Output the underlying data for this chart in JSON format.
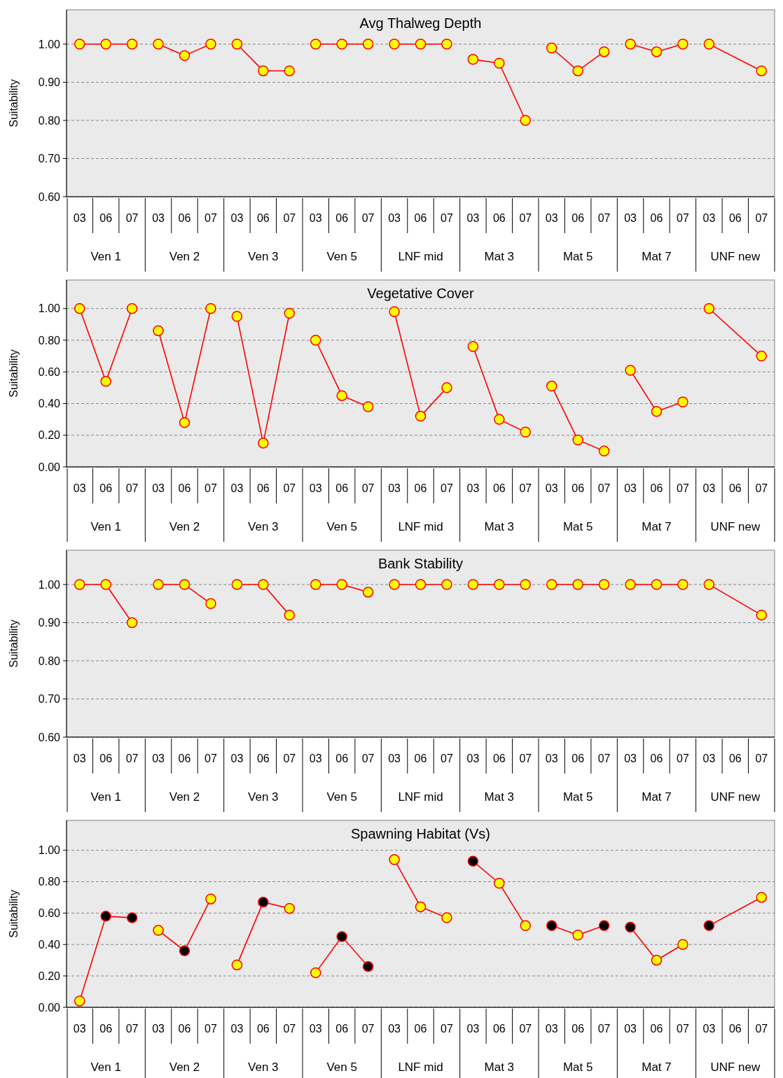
{
  "chart_data": [
    {
      "type": "line",
      "title": "Avg Thalweg  Depth",
      "ylabel": "Suitability",
      "categories": [
        "03",
        "06",
        "07",
        "03",
        "06",
        "07",
        "03",
        "06",
        "07",
        "03",
        "06",
        "07",
        "03",
        "06",
        "07",
        "03",
        "06",
        "07",
        "03",
        "06",
        "07",
        "03",
        "06",
        "07",
        "03",
        "06",
        "07"
      ],
      "annotations": [
        "Ven 1",
        "Ven 2",
        "Ven 3",
        "Ven 5",
        "LNF mid",
        "Mat 3",
        "Mat 5",
        "Mat 7",
        "UNF new"
      ],
      "ylim": [
        0.6,
        1.09
      ],
      "yticks": [
        {
          "value": 0.6,
          "label": "0.60"
        },
        {
          "value": 0.7,
          "label": "0.70"
        },
        {
          "value": 0.8,
          "label": "0.80"
        },
        {
          "value": 0.9,
          "label": "0.90"
        },
        {
          "value": 1,
          "label": "1.00"
        }
      ],
      "grid": "y",
      "marker": "circle",
      "line_style": "solid",
      "colors": [
        "#ffff00",
        "#ffff00",
        "#ffff00",
        "#ffff00",
        "#ffff00",
        "#ffff00",
        "#ffff00",
        "#ffff00",
        "#ffff00",
        "#ffff00",
        "#ffff00",
        "#ffff00",
        "#ffff00",
        "#ffff00",
        "#ffff00",
        "#ffff00",
        "#ffff00",
        "#ffff00",
        "#ffff00",
        "#ffff00",
        "#ffff00",
        "#ffff00",
        "#ffff00",
        "#ffff00",
        "#ffff00",
        null,
        "#ffff00"
      ],
      "series": [
        {
          "color": "#ff0000",
          "values": [
            1,
            1,
            1,
            null,
            null,
            null,
            null,
            null,
            null,
            null,
            null,
            null,
            null,
            null,
            null,
            null,
            null,
            null,
            null,
            null,
            null,
            null,
            null,
            null,
            null,
            null,
            null
          ]
        },
        {
          "color": "#ff0000",
          "values": [
            null,
            null,
            null,
            1,
            0.97,
            1,
            null,
            null,
            null,
            null,
            null,
            null,
            null,
            null,
            null,
            null,
            null,
            null,
            null,
            null,
            null,
            null,
            null,
            null,
            null,
            null,
            null
          ]
        },
        {
          "color": "#ff0000",
          "values": [
            null,
            null,
            null,
            null,
            null,
            null,
            1,
            0.93,
            0.93,
            null,
            null,
            null,
            null,
            null,
            null,
            null,
            null,
            null,
            null,
            null,
            null,
            null,
            null,
            null,
            null,
            null,
            null
          ]
        },
        {
          "color": "#ff0000",
          "values": [
            null,
            null,
            null,
            null,
            null,
            null,
            null,
            null,
            null,
            1,
            1,
            1,
            null,
            null,
            null,
            null,
            null,
            null,
            null,
            null,
            null,
            null,
            null,
            null,
            null,
            null,
            null
          ]
        },
        {
          "color": "#ff0000",
          "values": [
            null,
            null,
            null,
            null,
            null,
            null,
            null,
            null,
            null,
            null,
            null,
            null,
            1,
            1,
            1,
            null,
            null,
            null,
            null,
            null,
            null,
            null,
            null,
            null,
            null,
            null,
            null
          ]
        },
        {
          "color": "#ff0000",
          "values": [
            null,
            null,
            null,
            null,
            null,
            null,
            null,
            null,
            null,
            null,
            null,
            null,
            null,
            null,
            null,
            0.96,
            0.95,
            0.8,
            null,
            null,
            null,
            null,
            null,
            null,
            null,
            null,
            null
          ]
        },
        {
          "color": "#ff0000",
          "values": [
            null,
            null,
            null,
            null,
            null,
            null,
            null,
            null,
            null,
            null,
            null,
            null,
            null,
            null,
            null,
            null,
            null,
            null,
            0.99,
            0.93,
            0.98,
            null,
            null,
            null,
            null,
            null,
            null
          ]
        },
        {
          "color": "#ff0000",
          "values": [
            null,
            null,
            null,
            null,
            null,
            null,
            null,
            null,
            null,
            null,
            null,
            null,
            null,
            null,
            null,
            null,
            null,
            null,
            null,
            null,
            null,
            1,
            0.98,
            1,
            null,
            null,
            null
          ]
        },
        {
          "color": "#ff0000",
          "values": [
            null,
            null,
            null,
            null,
            null,
            null,
            null,
            null,
            null,
            null,
            null,
            null,
            null,
            null,
            null,
            null,
            null,
            null,
            null,
            null,
            null,
            null,
            null,
            null,
            1,
            null,
            0.93
          ]
        }
      ]
    },
    {
      "type": "line",
      "title": "Vegetative Cover",
      "ylabel": "Suitability",
      "categories": [
        "03",
        "06",
        "07",
        "03",
        "06",
        "07",
        "03",
        "06",
        "07",
        "03",
        "06",
        "07",
        "03",
        "06",
        "07",
        "03",
        "06",
        "07",
        "03",
        "06",
        "07",
        "03",
        "06",
        "07",
        "03",
        "06",
        "07"
      ],
      "annotations": [
        "Ven 1",
        "Ven 2",
        "Ven 3",
        "Ven 5",
        "LNF mid",
        "Mat 3",
        "Mat 5",
        "Mat 7",
        "UNF new"
      ],
      "ylim": [
        0,
        1.18
      ],
      "yticks": [
        {
          "value": 0,
          "label": "0.00"
        },
        {
          "value": 0.2,
          "label": "0.20"
        },
        {
          "value": 0.4,
          "label": "0.40"
        },
        {
          "value": 0.6,
          "label": "0.60"
        },
        {
          "value": 0.8,
          "label": "0.80"
        },
        {
          "value": 1,
          "label": "1.00"
        }
      ],
      "grid": "y",
      "marker": "circle",
      "line_style": "solid",
      "colors": [
        "#ffff00",
        "#ffff00",
        "#ffff00",
        "#ffff00",
        "#ffff00",
        "#ffff00",
        "#ffff00",
        "#ffff00",
        "#ffff00",
        "#ffff00",
        "#ffff00",
        "#ffff00",
        "#ffff00",
        "#ffff00",
        "#ffff00",
        "#ffff00",
        "#ffff00",
        "#ffff00",
        "#ffff00",
        "#ffff00",
        "#ffff00",
        "#ffff00",
        "#ffff00",
        "#ffff00",
        "#ffff00",
        null,
        "#ffff00"
      ],
      "series": [
        {
          "color": "#ff0000",
          "values": [
            1,
            0.54,
            1,
            null,
            null,
            null,
            null,
            null,
            null,
            null,
            null,
            null,
            null,
            null,
            null,
            null,
            null,
            null,
            null,
            null,
            null,
            null,
            null,
            null,
            null,
            null,
            null
          ]
        },
        {
          "color": "#ff0000",
          "values": [
            null,
            null,
            null,
            0.86,
            0.28,
            1,
            null,
            null,
            null,
            null,
            null,
            null,
            null,
            null,
            null,
            null,
            null,
            null,
            null,
            null,
            null,
            null,
            null,
            null,
            null,
            null,
            null
          ]
        },
        {
          "color": "#ff0000",
          "values": [
            null,
            null,
            null,
            null,
            null,
            null,
            0.95,
            0.15,
            0.97,
            null,
            null,
            null,
            null,
            null,
            null,
            null,
            null,
            null,
            null,
            null,
            null,
            null,
            null,
            null,
            null,
            null,
            null
          ]
        },
        {
          "color": "#ff0000",
          "values": [
            null,
            null,
            null,
            null,
            null,
            null,
            null,
            null,
            null,
            0.8,
            0.45,
            0.38,
            null,
            null,
            null,
            null,
            null,
            null,
            null,
            null,
            null,
            null,
            null,
            null,
            null,
            null,
            null
          ]
        },
        {
          "color": "#ff0000",
          "values": [
            null,
            null,
            null,
            null,
            null,
            null,
            null,
            null,
            null,
            null,
            null,
            null,
            0.98,
            0.32,
            0.5,
            null,
            null,
            null,
            null,
            null,
            null,
            null,
            null,
            null,
            null,
            null,
            null
          ]
        },
        {
          "color": "#ff0000",
          "values": [
            null,
            null,
            null,
            null,
            null,
            null,
            null,
            null,
            null,
            null,
            null,
            null,
            null,
            null,
            null,
            0.76,
            0.3,
            0.22,
            null,
            null,
            null,
            null,
            null,
            null,
            null,
            null,
            null
          ]
        },
        {
          "color": "#ff0000",
          "values": [
            null,
            null,
            null,
            null,
            null,
            null,
            null,
            null,
            null,
            null,
            null,
            null,
            null,
            null,
            null,
            null,
            null,
            null,
            0.51,
            0.17,
            0.1,
            null,
            null,
            null,
            null,
            null,
            null
          ]
        },
        {
          "color": "#ff0000",
          "values": [
            null,
            null,
            null,
            null,
            null,
            null,
            null,
            null,
            null,
            null,
            null,
            null,
            null,
            null,
            null,
            null,
            null,
            null,
            null,
            null,
            null,
            0.61,
            0.35,
            0.41,
            null,
            null,
            null
          ]
        },
        {
          "color": "#ff0000",
          "values": [
            null,
            null,
            null,
            null,
            null,
            null,
            null,
            null,
            null,
            null,
            null,
            null,
            null,
            null,
            null,
            null,
            null,
            null,
            null,
            null,
            null,
            null,
            null,
            null,
            1,
            null,
            0.7
          ]
        }
      ]
    },
    {
      "type": "line",
      "title": "Bank Stability",
      "ylabel": "Suitability",
      "categories": [
        "03",
        "06",
        "07",
        "03",
        "06",
        "07",
        "03",
        "06",
        "07",
        "03",
        "06",
        "07",
        "03",
        "06",
        "07",
        "03",
        "06",
        "07",
        "03",
        "06",
        "07",
        "03",
        "06",
        "07",
        "03",
        "06",
        "07"
      ],
      "annotations": [
        "Ven 1",
        "Ven 2",
        "Ven 3",
        "Ven 5",
        "LNF mid",
        "Mat 3",
        "Mat 5",
        "Mat 7",
        "UNF new"
      ],
      "ylim": [
        0.6,
        1.09
      ],
      "yticks": [
        {
          "value": 0.6,
          "label": "0.60"
        },
        {
          "value": 0.7,
          "label": "0.70"
        },
        {
          "value": 0.8,
          "label": "0.80"
        },
        {
          "value": 0.9,
          "label": "0.90"
        },
        {
          "value": 1,
          "label": "1.00"
        }
      ],
      "grid": "y",
      "marker": "circle",
      "line_style": "solid",
      "colors": [
        "#ffff00",
        "#ffff00",
        "#ffff00",
        "#ffff00",
        "#ffff00",
        "#ffff00",
        "#ffff00",
        "#ffff00",
        "#ffff00",
        "#ffff00",
        "#ffff00",
        "#ffff00",
        "#ffff00",
        "#ffff00",
        "#ffff00",
        "#ffff00",
        "#ffff00",
        "#ffff00",
        "#ffff00",
        "#ffff00",
        "#ffff00",
        "#ffff00",
        "#ffff00",
        "#ffff00",
        "#ffff00",
        null,
        "#ffff00"
      ],
      "series": [
        {
          "color": "#ff0000",
          "values": [
            1,
            1,
            0.9,
            null,
            null,
            null,
            null,
            null,
            null,
            null,
            null,
            null,
            null,
            null,
            null,
            null,
            null,
            null,
            null,
            null,
            null,
            null,
            null,
            null,
            null,
            null,
            null
          ]
        },
        {
          "color": "#ff0000",
          "values": [
            null,
            null,
            null,
            1,
            1,
            0.95,
            null,
            null,
            null,
            null,
            null,
            null,
            null,
            null,
            null,
            null,
            null,
            null,
            null,
            null,
            null,
            null,
            null,
            null,
            null,
            null,
            null
          ]
        },
        {
          "color": "#ff0000",
          "values": [
            null,
            null,
            null,
            null,
            null,
            null,
            1,
            1,
            0.92,
            null,
            null,
            null,
            null,
            null,
            null,
            null,
            null,
            null,
            null,
            null,
            null,
            null,
            null,
            null,
            null,
            null,
            null
          ]
        },
        {
          "color": "#ff0000",
          "values": [
            null,
            null,
            null,
            null,
            null,
            null,
            null,
            null,
            null,
            1,
            1,
            0.98,
            null,
            null,
            null,
            null,
            null,
            null,
            null,
            null,
            null,
            null,
            null,
            null,
            null,
            null,
            null
          ]
        },
        {
          "color": "#ff0000",
          "values": [
            null,
            null,
            null,
            null,
            null,
            null,
            null,
            null,
            null,
            null,
            null,
            null,
            1,
            1,
            1,
            null,
            null,
            null,
            null,
            null,
            null,
            null,
            null,
            null,
            null,
            null,
            null
          ]
        },
        {
          "color": "#ff0000",
          "values": [
            null,
            null,
            null,
            null,
            null,
            null,
            null,
            null,
            null,
            null,
            null,
            null,
            null,
            null,
            null,
            1,
            1,
            1,
            null,
            null,
            null,
            null,
            null,
            null,
            null,
            null,
            null
          ]
        },
        {
          "color": "#ff0000",
          "values": [
            null,
            null,
            null,
            null,
            null,
            null,
            null,
            null,
            null,
            null,
            null,
            null,
            null,
            null,
            null,
            null,
            null,
            null,
            1,
            1,
            1,
            null,
            null,
            null,
            null,
            null,
            null
          ]
        },
        {
          "color": "#ff0000",
          "values": [
            null,
            null,
            null,
            null,
            null,
            null,
            null,
            null,
            null,
            null,
            null,
            null,
            null,
            null,
            null,
            null,
            null,
            null,
            null,
            null,
            null,
            1,
            1,
            1,
            null,
            null,
            null
          ]
        },
        {
          "color": "#ff0000",
          "values": [
            null,
            null,
            null,
            null,
            null,
            null,
            null,
            null,
            null,
            null,
            null,
            null,
            null,
            null,
            null,
            null,
            null,
            null,
            null,
            null,
            null,
            null,
            null,
            null,
            1,
            null,
            0.92
          ]
        }
      ]
    },
    {
      "type": "line",
      "title": "Spawning Habitat (Vs)",
      "ylabel": "Suitability",
      "categories": [
        "03",
        "06",
        "07",
        "03",
        "06",
        "07",
        "03",
        "06",
        "07",
        "03",
        "06",
        "07",
        "03",
        "06",
        "07",
        "03",
        "06",
        "07",
        "03",
        "06",
        "07",
        "03",
        "06",
        "07",
        "03",
        "06",
        "07"
      ],
      "annotations": [
        "Ven 1",
        "Ven 2",
        "Ven 3",
        "Ven 5",
        "LNF mid",
        "Mat 3",
        "Mat 5",
        "Mat 7",
        "UNF new"
      ],
      "ylim": [
        0,
        1.19
      ],
      "yticks": [
        {
          "value": 0,
          "label": "0.00"
        },
        {
          "value": 0.2,
          "label": "0.20"
        },
        {
          "value": 0.4,
          "label": "0.40"
        },
        {
          "value": 0.6,
          "label": "0.60"
        },
        {
          "value": 0.8,
          "label": "0.80"
        },
        {
          "value": 1,
          "label": "1.00"
        }
      ],
      "grid": "y",
      "marker": "circle",
      "line_style": "solid",
      "colors": [
        "#ffff00",
        "#000000",
        "#000000",
        "#ffff00",
        "#000000",
        "#ffff00",
        "#ffff00",
        "#000000",
        "#ffff00",
        "#ffff00",
        "#000000",
        "#000000",
        "#ffff00",
        "#ffff00",
        "#ffff00",
        "#000000",
        "#ffff00",
        "#ffff00",
        "#000000",
        "#ffff00",
        "#000000",
        "#000000",
        "#ffff00",
        "#ffff00",
        "#000000",
        null,
        "#ffff00"
      ],
      "series": [
        {
          "color": "#ff0000",
          "values": [
            0.04,
            0.58,
            0.57,
            null,
            null,
            null,
            null,
            null,
            null,
            null,
            null,
            null,
            null,
            null,
            null,
            null,
            null,
            null,
            null,
            null,
            null,
            null,
            null,
            null,
            null,
            null,
            null
          ]
        },
        {
          "color": "#ff0000",
          "values": [
            null,
            null,
            null,
            0.49,
            0.36,
            0.69,
            null,
            null,
            null,
            null,
            null,
            null,
            null,
            null,
            null,
            null,
            null,
            null,
            null,
            null,
            null,
            null,
            null,
            null,
            null,
            null,
            null
          ]
        },
        {
          "color": "#ff0000",
          "values": [
            null,
            null,
            null,
            null,
            null,
            null,
            0.27,
            0.67,
            0.63,
            null,
            null,
            null,
            null,
            null,
            null,
            null,
            null,
            null,
            null,
            null,
            null,
            null,
            null,
            null,
            null,
            null,
            null
          ]
        },
        {
          "color": "#ff0000",
          "values": [
            null,
            null,
            null,
            null,
            null,
            null,
            null,
            null,
            null,
            0.22,
            0.45,
            0.26,
            null,
            null,
            null,
            null,
            null,
            null,
            null,
            null,
            null,
            null,
            null,
            null,
            null,
            null,
            null
          ]
        },
        {
          "color": "#ff0000",
          "values": [
            null,
            null,
            null,
            null,
            null,
            null,
            null,
            null,
            null,
            null,
            null,
            null,
            0.94,
            0.64,
            0.57,
            null,
            null,
            null,
            null,
            null,
            null,
            null,
            null,
            null,
            null,
            null,
            null
          ]
        },
        {
          "color": "#ff0000",
          "values": [
            null,
            null,
            null,
            null,
            null,
            null,
            null,
            null,
            null,
            null,
            null,
            null,
            null,
            null,
            null,
            0.93,
            0.79,
            0.52,
            null,
            null,
            null,
            null,
            null,
            null,
            null,
            null,
            null
          ]
        },
        {
          "color": "#ff0000",
          "values": [
            null,
            null,
            null,
            null,
            null,
            null,
            null,
            null,
            null,
            null,
            null,
            null,
            null,
            null,
            null,
            null,
            null,
            null,
            0.52,
            0.46,
            0.52,
            null,
            null,
            null,
            null,
            null,
            null
          ]
        },
        {
          "color": "#ff0000",
          "values": [
            null,
            null,
            null,
            null,
            null,
            null,
            null,
            null,
            null,
            null,
            null,
            null,
            null,
            null,
            null,
            null,
            null,
            null,
            null,
            null,
            null,
            0.51,
            0.3,
            0.4,
            null,
            null,
            null
          ]
        },
        {
          "color": "#ff0000",
          "values": [
            null,
            null,
            null,
            null,
            null,
            null,
            null,
            null,
            null,
            null,
            null,
            null,
            null,
            null,
            null,
            null,
            null,
            null,
            null,
            null,
            null,
            null,
            null,
            null,
            0.52,
            null,
            0.7
          ]
        }
      ]
    }
  ]
}
